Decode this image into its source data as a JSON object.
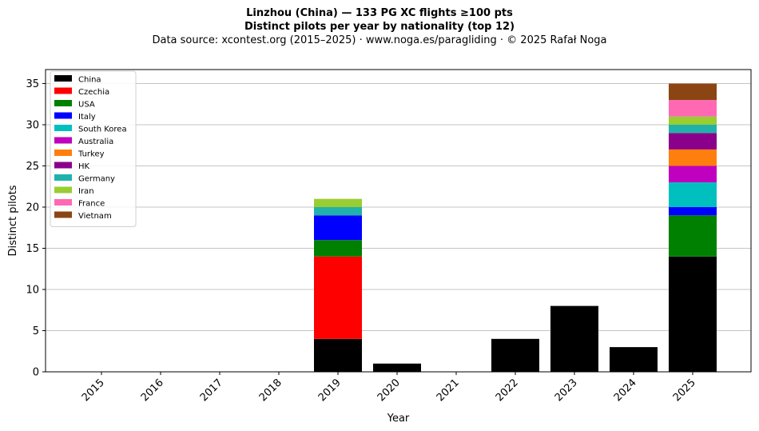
{
  "chart_data": {
    "type": "bar",
    "stacked": true,
    "title": "Linzhou (China)  —  133 PG XC flights ≥100 pts",
    "subtitle": "Distinct pilots per year by nationality (top 12)",
    "source": "Data source: xcontest.org (2015–2025)  ·  www.noga.es/paragliding  ·  © 2025 Rafał Noga",
    "xlabel": "Year",
    "ylabel": "Distinct pilots",
    "ylim": [
      0,
      36.7
    ],
    "yticks": [
      0,
      5,
      10,
      15,
      20,
      25,
      30,
      35
    ],
    "grid": "horizontal",
    "legend_position": "top-left",
    "categories": [
      "2015",
      "2016",
      "2017",
      "2018",
      "2019",
      "2020",
      "2021",
      "2022",
      "2023",
      "2024",
      "2025"
    ],
    "series": [
      {
        "name": "China",
        "color": "#000000",
        "values": [
          0,
          0,
          0,
          0,
          4,
          1,
          0,
          4,
          8,
          3,
          14
        ]
      },
      {
        "name": "Czechia",
        "color": "#ff0000",
        "values": [
          0,
          0,
          0,
          0,
          10,
          0,
          0,
          0,
          0,
          0,
          0
        ]
      },
      {
        "name": "USA",
        "color": "#008000",
        "values": [
          0,
          0,
          0,
          0,
          2,
          0,
          0,
          0,
          0,
          0,
          5
        ]
      },
      {
        "name": "Italy",
        "color": "#0000ff",
        "values": [
          0,
          0,
          0,
          0,
          3,
          0,
          0,
          0,
          0,
          0,
          1
        ]
      },
      {
        "name": "South Korea",
        "color": "#00bfbf",
        "values": [
          0,
          0,
          0,
          0,
          0,
          0,
          0,
          0,
          0,
          0,
          3
        ]
      },
      {
        "name": "Australia",
        "color": "#bf00bf",
        "values": [
          0,
          0,
          0,
          0,
          0,
          0,
          0,
          0,
          0,
          0,
          2
        ]
      },
      {
        "name": "Turkey",
        "color": "#ff7f0e",
        "values": [
          0,
          0,
          0,
          0,
          0,
          0,
          0,
          0,
          0,
          0,
          2
        ]
      },
      {
        "name": "HK",
        "color": "#8b008b",
        "values": [
          0,
          0,
          0,
          0,
          0,
          0,
          0,
          0,
          0,
          0,
          2
        ]
      },
      {
        "name": "Germany",
        "color": "#20b2aa",
        "values": [
          0,
          0,
          0,
          0,
          1,
          0,
          0,
          0,
          0,
          0,
          1
        ]
      },
      {
        "name": "Iran",
        "color": "#9acd32",
        "values": [
          0,
          0,
          0,
          0,
          1,
          0,
          0,
          0,
          0,
          0,
          1
        ]
      },
      {
        "name": "France",
        "color": "#ff69b4",
        "values": [
          0,
          0,
          0,
          0,
          0,
          0,
          0,
          0,
          0,
          0,
          2
        ]
      },
      {
        "name": "Vietnam",
        "color": "#8b4513",
        "values": [
          0,
          0,
          0,
          0,
          0,
          0,
          0,
          0,
          0,
          0,
          2
        ]
      }
    ]
  }
}
